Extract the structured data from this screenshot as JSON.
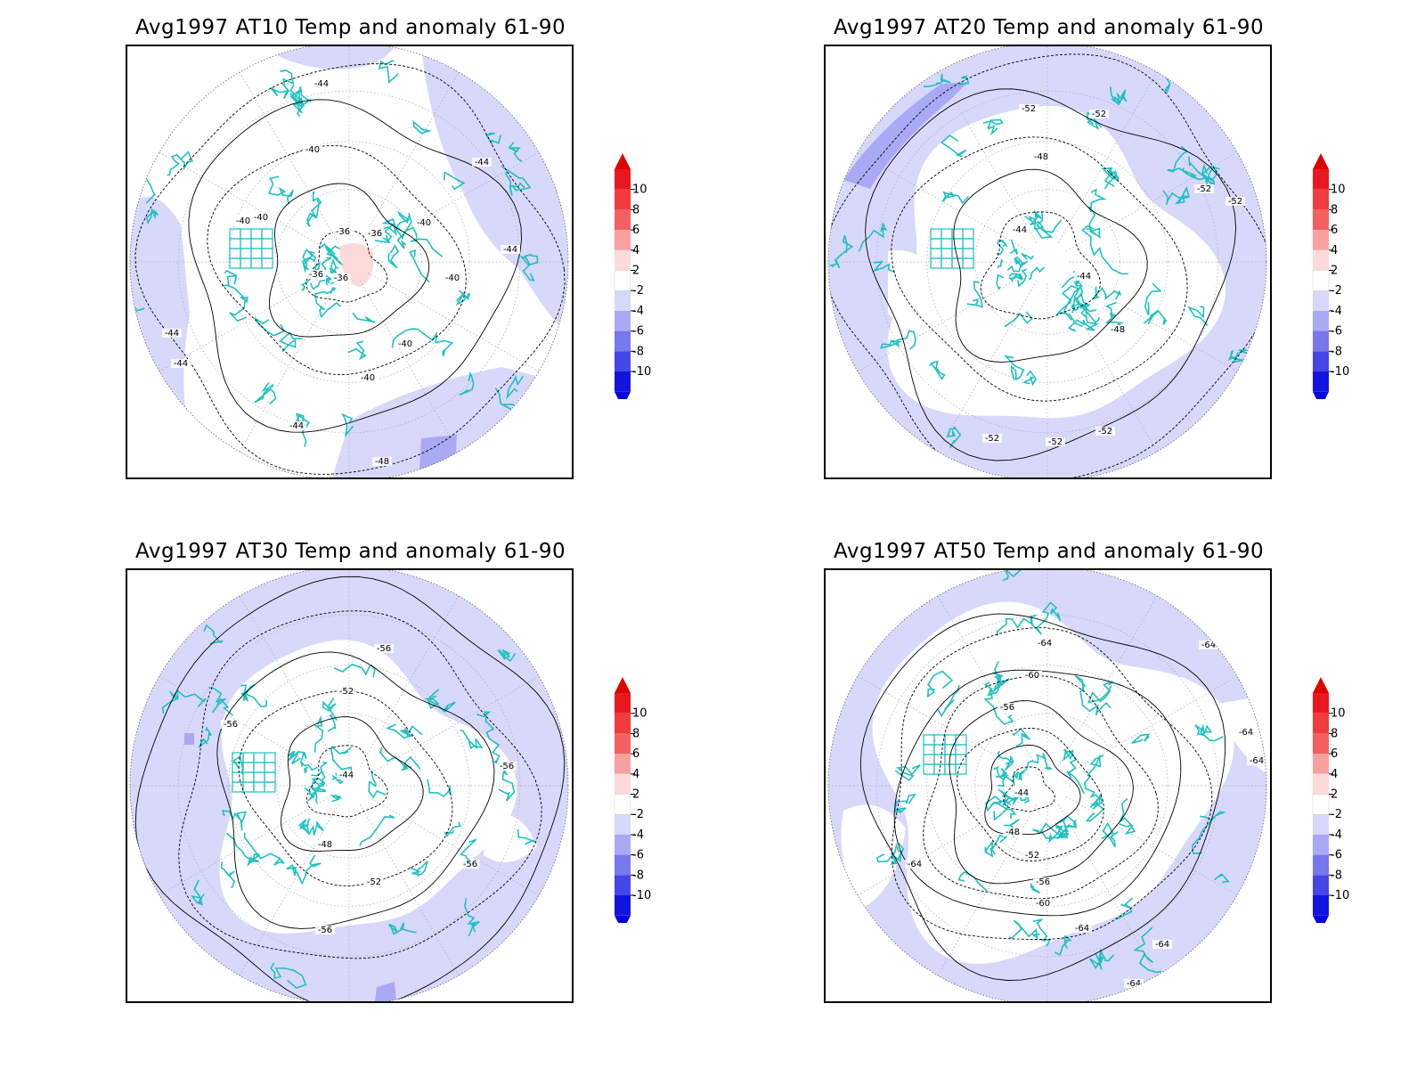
{
  "panels": [
    {
      "id": "at10",
      "title": "Avg1997 AT10 Temp and anomaly 61-90",
      "contour_labels": [
        "-44",
        "-40",
        "-44",
        "-40",
        "-40",
        "-36",
        "-36",
        "-40",
        "-44",
        "-36",
        "-36",
        "-40",
        "-44",
        "-40",
        "-40",
        "-44",
        "-44",
        "-48"
      ],
      "anomaly_color": "#d8d8fb"
    },
    {
      "id": "at20",
      "title": "Avg1997 AT20 Temp and anomaly 61-90",
      "contour_labels": [
        "-52",
        "-52",
        "-48",
        "-52",
        "-52",
        "-44",
        "-44",
        "-48",
        "-52",
        "-52",
        "-52"
      ],
      "anomaly_color": "#d8d8fb"
    },
    {
      "id": "at30",
      "title": "Avg1997 AT30 Temp and anomaly 61-90",
      "contour_labels": [
        "-56",
        "-52",
        "-56",
        "-56",
        "-44",
        "-48",
        "-56",
        "-52",
        "-56"
      ],
      "anomaly_color": "#d8d8fb"
    },
    {
      "id": "at50",
      "title": "Avg1997 AT50 Temp and anomaly 61-90",
      "contour_labels": [
        "-64",
        "-64",
        "-60",
        "-56",
        "-64",
        "-64",
        "-44",
        "-48",
        "-52",
        "-56",
        "-60",
        "-64",
        "-64",
        "-64",
        "-64"
      ],
      "anomaly_color": "#d8d8fb"
    }
  ],
  "colorbar": {
    "labels": [
      "10",
      "8",
      "6",
      "4",
      "2",
      "-2",
      "-4",
      "-6",
      "-8",
      "-10"
    ],
    "colors": [
      "#e8191e",
      "#f03c3c",
      "#f46060",
      "#f8a0a0",
      "#fcdada",
      "#ffffff",
      "#d8d8fb",
      "#a9a9f5",
      "#7777ee",
      "#4545e8",
      "#1414e0"
    ],
    "top_arrow_color": "#e00000",
    "bottom_arrow_color": "#0000e0"
  },
  "colors": {
    "coastline": "#20c0c0",
    "contour": "#000000",
    "anomaly_light_blue": "#d8d8fb",
    "anomaly_mid_blue": "#a9a9f5",
    "anomaly_light_red": "#fcdada"
  }
}
